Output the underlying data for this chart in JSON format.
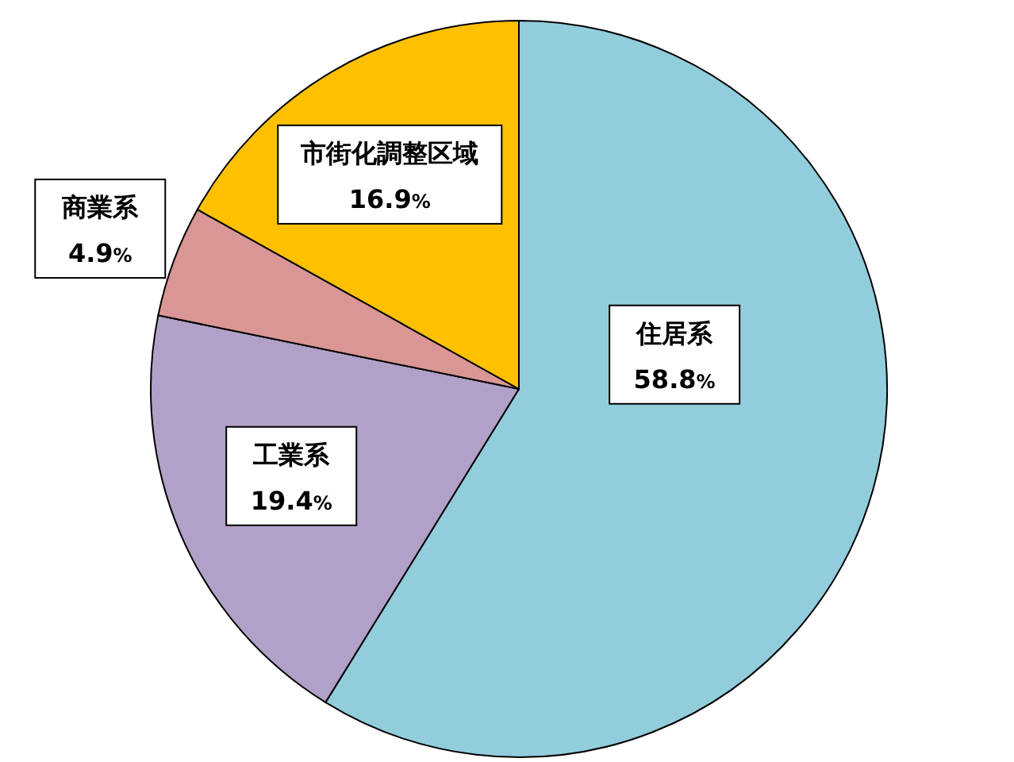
{
  "chart_data": {
    "type": "pie",
    "categories": [
      "住居系",
      "工業系",
      "商業系",
      "市街化調整区域"
    ],
    "values": [
      58.8,
      19.4,
      4.9,
      16.9
    ],
    "value_labels": [
      "58.8%",
      "19.4%",
      "4.9%",
      "16.9%"
    ],
    "colors": [
      "#92cddc",
      "#b1a0c7",
      "#da9694",
      "#ffc000"
    ]
  }
}
